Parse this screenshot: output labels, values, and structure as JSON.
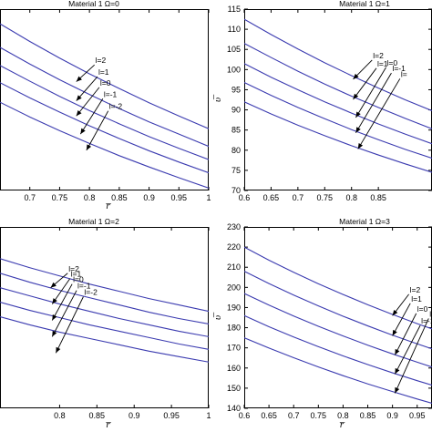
{
  "chart_data": [
    {
      "type": "line",
      "title": "Material 1    Ω=0",
      "xlabel": "r̅",
      "ylabel": "",
      "xlim": [
        0.65,
        1.0
      ],
      "ylim": [
        75,
        112
      ],
      "xticks": [
        "0.7",
        "0.75",
        "0.8",
        "0.85",
        "0.9",
        "0.95",
        "1"
      ],
      "yticks": [],
      "x": [
        0.65,
        0.7,
        0.75,
        0.8,
        0.85,
        0.9,
        0.95,
        1.0
      ],
      "series": [
        {
          "name": "l=2",
          "values": [
            109,
            105.4,
            102.0,
            98.8,
            95.8,
            92.9,
            90.2,
            87.6
          ]
        },
        {
          "name": "l=1",
          "values": [
            104.2,
            100.8,
            97.6,
            94.6,
            91.7,
            89.0,
            86.5,
            84.0
          ]
        },
        {
          "name": "l=0",
          "values": [
            100.5,
            97.3,
            94.2,
            91.3,
            88.6,
            86.0,
            83.6,
            81.3
          ]
        },
        {
          "name": "l=-1",
          "values": [
            97.0,
            93.9,
            91.0,
            88.2,
            85.6,
            83.1,
            80.8,
            78.6
          ]
        },
        {
          "name": "l=-2",
          "values": [
            93.0,
            90.0,
            87.2,
            84.6,
            82.1,
            79.8,
            77.6,
            75.5
          ]
        }
      ],
      "annotations": [
        {
          "text": "l=2",
          "x": 0.81,
          "y": 101.0,
          "target_x": 0.778,
          "target_y": 97.2
        },
        {
          "text": "l=1",
          "x": 0.815,
          "y": 98.6,
          "target_x": 0.778,
          "target_y": 93.3
        },
        {
          "text": "l=0",
          "x": 0.818,
          "y": 96.4,
          "target_x": 0.778,
          "target_y": 90.2
        },
        {
          "text": "l=-1",
          "x": 0.824,
          "y": 94.1,
          "target_x": 0.785,
          "target_y": 86.5
        },
        {
          "text": "l=-2",
          "x": 0.833,
          "y": 91.6,
          "target_x": 0.795,
          "target_y": 83.2
        }
      ]
    },
    {
      "type": "line",
      "title": "Material 1    Ω=1",
      "xlabel": "",
      "ylabel": "υ̅",
      "xlim": [
        0.6,
        0.95
      ],
      "ylim": [
        70,
        115
      ],
      "xticks": [
        "0.6",
        "0.65",
        "0.7",
        "0.75",
        "0.8",
        "0.85"
      ],
      "yticks": [
        "70",
        "75",
        "80",
        "85",
        "90",
        "95",
        "100",
        "105",
        "110",
        "115"
      ],
      "x": [
        0.6,
        0.65,
        0.7,
        0.75,
        0.8,
        0.85,
        0.9,
        0.95
      ],
      "series": [
        {
          "name": "l=2",
          "values": [
            112.5,
            108.7,
            105.1,
            101.7,
            98.5,
            95.4,
            92.5,
            89.8
          ]
        },
        {
          "name": "l=1",
          "values": [
            106.5,
            103.0,
            99.6,
            96.4,
            93.4,
            90.6,
            87.9,
            85.3
          ]
        },
        {
          "name": "l=0",
          "values": [
            101.5,
            98.1,
            95.0,
            92.0,
            89.2,
            86.5,
            84.0,
            81.6
          ]
        },
        {
          "name": "l=-1",
          "values": [
            96.8,
            93.6,
            90.6,
            87.8,
            85.1,
            82.6,
            80.2,
            78.0
          ]
        },
        {
          "name": "l=-2",
          "values": [
            92.0,
            89.0,
            86.2,
            83.6,
            81.1,
            78.8,
            76.6,
            74.5
          ]
        }
      ],
      "annotations": [
        {
          "text": "l=2",
          "x": 0.84,
          "y": 102.8,
          "target_x": 0.803,
          "target_y": 97.6
        },
        {
          "text": "l=1",
          "x": 0.848,
          "y": 100.8,
          "target_x": 0.803,
          "target_y": 92.6
        },
        {
          "text": "l=0",
          "x": 0.866,
          "y": 101.0,
          "target_x": 0.808,
          "target_y": 88.1
        },
        {
          "text": "l=-1",
          "x": 0.876,
          "y": 99.6,
          "target_x": 0.808,
          "target_y": 84.3
        },
        {
          "text": "l=",
          "x": 0.892,
          "y": 98.2,
          "target_x": 0.812,
          "target_y": 80.3
        }
      ]
    },
    {
      "type": "line",
      "title": "Material 1    Ω=2",
      "xlabel": "r̅",
      "ylabel": "",
      "xlim": [
        0.72,
        1.0
      ],
      "ylim": [
        0,
        10
      ],
      "xticks": [
        "0.8",
        "0.85",
        "0.9",
        "0.95",
        "1"
      ],
      "yticks": [],
      "x": [
        0.72,
        0.76,
        0.8,
        0.84,
        0.88,
        0.92,
        0.96,
        1.0
      ],
      "series": [
        {
          "name": "l=2",
          "values": [
            8.25,
            7.75,
            7.3,
            6.85,
            6.45,
            6.05,
            5.7,
            5.35
          ]
        },
        {
          "name": "l=1",
          "values": [
            7.45,
            6.95,
            6.5,
            6.1,
            5.7,
            5.3,
            4.95,
            4.65
          ]
        },
        {
          "name": "l=0",
          "values": [
            6.65,
            6.2,
            5.75,
            5.35,
            4.95,
            4.6,
            4.25,
            3.95
          ]
        },
        {
          "name": "l=-1",
          "values": [
            5.85,
            5.4,
            5.0,
            4.6,
            4.25,
            3.9,
            3.55,
            3.25
          ]
        },
        {
          "name": "l=-2",
          "values": [
            5.05,
            4.6,
            4.2,
            3.85,
            3.5,
            3.15,
            2.85,
            2.55
          ]
        }
      ],
      "annotations": [
        {
          "text": "l=2",
          "x": 0.812,
          "y": 7.55,
          "target_x": 0.788,
          "target_y": 6.65
        },
        {
          "text": "l=1",
          "x": 0.815,
          "y": 7.25,
          "target_x": 0.79,
          "target_y": 5.75
        },
        {
          "text": "l=0",
          "x": 0.818,
          "y": 6.95,
          "target_x": 0.79,
          "target_y": 4.85
        },
        {
          "text": "l=-1",
          "x": 0.824,
          "y": 6.6,
          "target_x": 0.79,
          "target_y": 3.95
        },
        {
          "text": "l=-2",
          "x": 0.833,
          "y": 6.25,
          "target_x": 0.795,
          "target_y": 3.05
        }
      ]
    },
    {
      "type": "line",
      "title": "Material 1    Ω=3",
      "xlabel": "r̅",
      "ylabel": "υ̅",
      "xlim": [
        0.6,
        0.98
      ],
      "ylim": [
        140,
        230
      ],
      "xticks": [
        "0.6",
        "0.65",
        "0.7",
        "0.75",
        "0.8",
        "0.85",
        "0.9",
        "0.95"
      ],
      "yticks": [
        "140",
        "150",
        "160",
        "170",
        "180",
        "190",
        "200",
        "210",
        "220",
        "230"
      ],
      "x": [
        0.6,
        0.65,
        0.7,
        0.75,
        0.8,
        0.85,
        0.9,
        0.95,
        0.98
      ],
      "series": [
        {
          "name": "l=2",
          "values": [
            220,
            213.5,
            207.5,
            201.8,
            196.5,
            191.4,
            186.6,
            182.0,
            179.4
          ]
        },
        {
          "name": "l=1",
          "values": [
            208,
            201.9,
            196.2,
            190.8,
            185.7,
            180.9,
            176.3,
            172.0,
            169.5
          ]
        },
        {
          "name": "l=0",
          "values": [
            197,
            191.2,
            185.8,
            180.7,
            175.9,
            171.3,
            167.0,
            162.9,
            160.5
          ]
        },
        {
          "name": "l=-1",
          "values": [
            186,
            180.5,
            175.4,
            170.6,
            166.0,
            161.7,
            157.6,
            153.7,
            151.5
          ]
        },
        {
          "name": "l=-2",
          "values": [
            175,
            169.9,
            165.1,
            160.5,
            156.2,
            152.1,
            148.3,
            144.6,
            142.5
          ]
        }
      ],
      "annotations": [
        {
          "text": "l=2",
          "x": 0.935,
          "y": 197.5,
          "target_x": 0.9,
          "target_y": 186.0
        },
        {
          "text": "l=1",
          "x": 0.938,
          "y": 193.0,
          "target_x": 0.9,
          "target_y": 176.0
        },
        {
          "text": "l=0",
          "x": 0.95,
          "y": 188.0,
          "target_x": 0.905,
          "target_y": 166.5
        },
        {
          "text": "l=-1",
          "x": 0.958,
          "y": 182.0,
          "target_x": 0.905,
          "target_y": 157.0
        },
        {
          "text": "l=",
          "x": 0.975,
          "y": 185.5,
          "target_x": 0.905,
          "target_y": 147.5
        }
      ]
    }
  ]
}
